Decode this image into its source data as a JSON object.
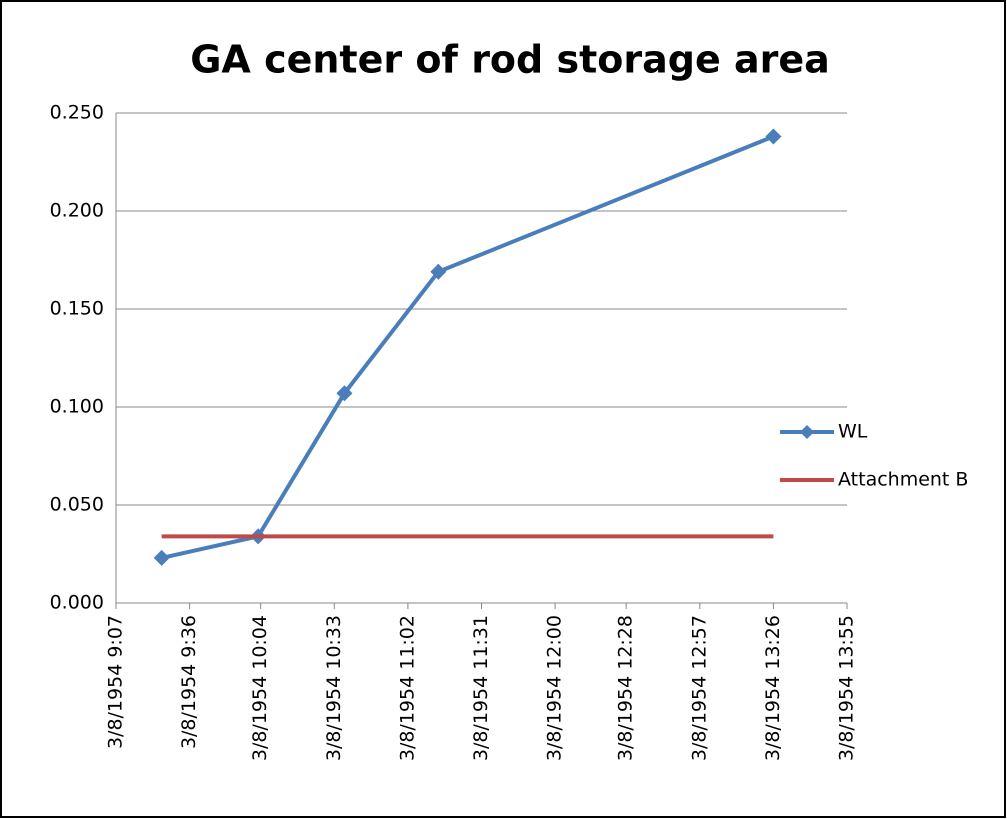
{
  "chart_data": {
    "type": "line",
    "title": "GA center of rod storage area",
    "series": [
      {
        "name": "WL",
        "color": "#4a7ebb",
        "marker": "diamond",
        "x": [
          "3/8/1954 9:25",
          "3/8/1954 10:03",
          "3/8/1954 10:37",
          "3/8/1954 11:14",
          "3/8/1954 13:26"
        ],
        "values": [
          0.023,
          0.034,
          0.107,
          0.169,
          0.238
        ]
      },
      {
        "name": "Attachment B",
        "color": "#be4b48",
        "x": [
          "3/8/1954 9:25",
          "3/8/1954 13:26"
        ],
        "values": [
          0.034,
          0.034
        ]
      }
    ],
    "xlim": [
      "3/8/1954 9:07",
      "3/8/1954 13:55"
    ],
    "xticks": [
      "3/8/1954 9:07",
      "3/8/1954 9:36",
      "3/8/1954 10:04",
      "3/8/1954 10:33",
      "3/8/1954 11:02",
      "3/8/1954 11:31",
      "3/8/1954 12:00",
      "3/8/1954 12:28",
      "3/8/1954 12:57",
      "3/8/1954 13:26",
      "3/8/1954 13:55"
    ],
    "ylim": [
      0,
      0.25
    ],
    "yticks": [
      {
        "value": 0,
        "label": "0.000"
      },
      {
        "value": 0.05,
        "label": "0.050"
      },
      {
        "value": 0.1,
        "label": "0.100"
      },
      {
        "value": 0.15,
        "label": "0.150"
      },
      {
        "value": 0.2,
        "label": "0.200"
      },
      {
        "value": 0.25,
        "label": "0.250"
      }
    ],
    "grid": true,
    "legend": "right"
  }
}
